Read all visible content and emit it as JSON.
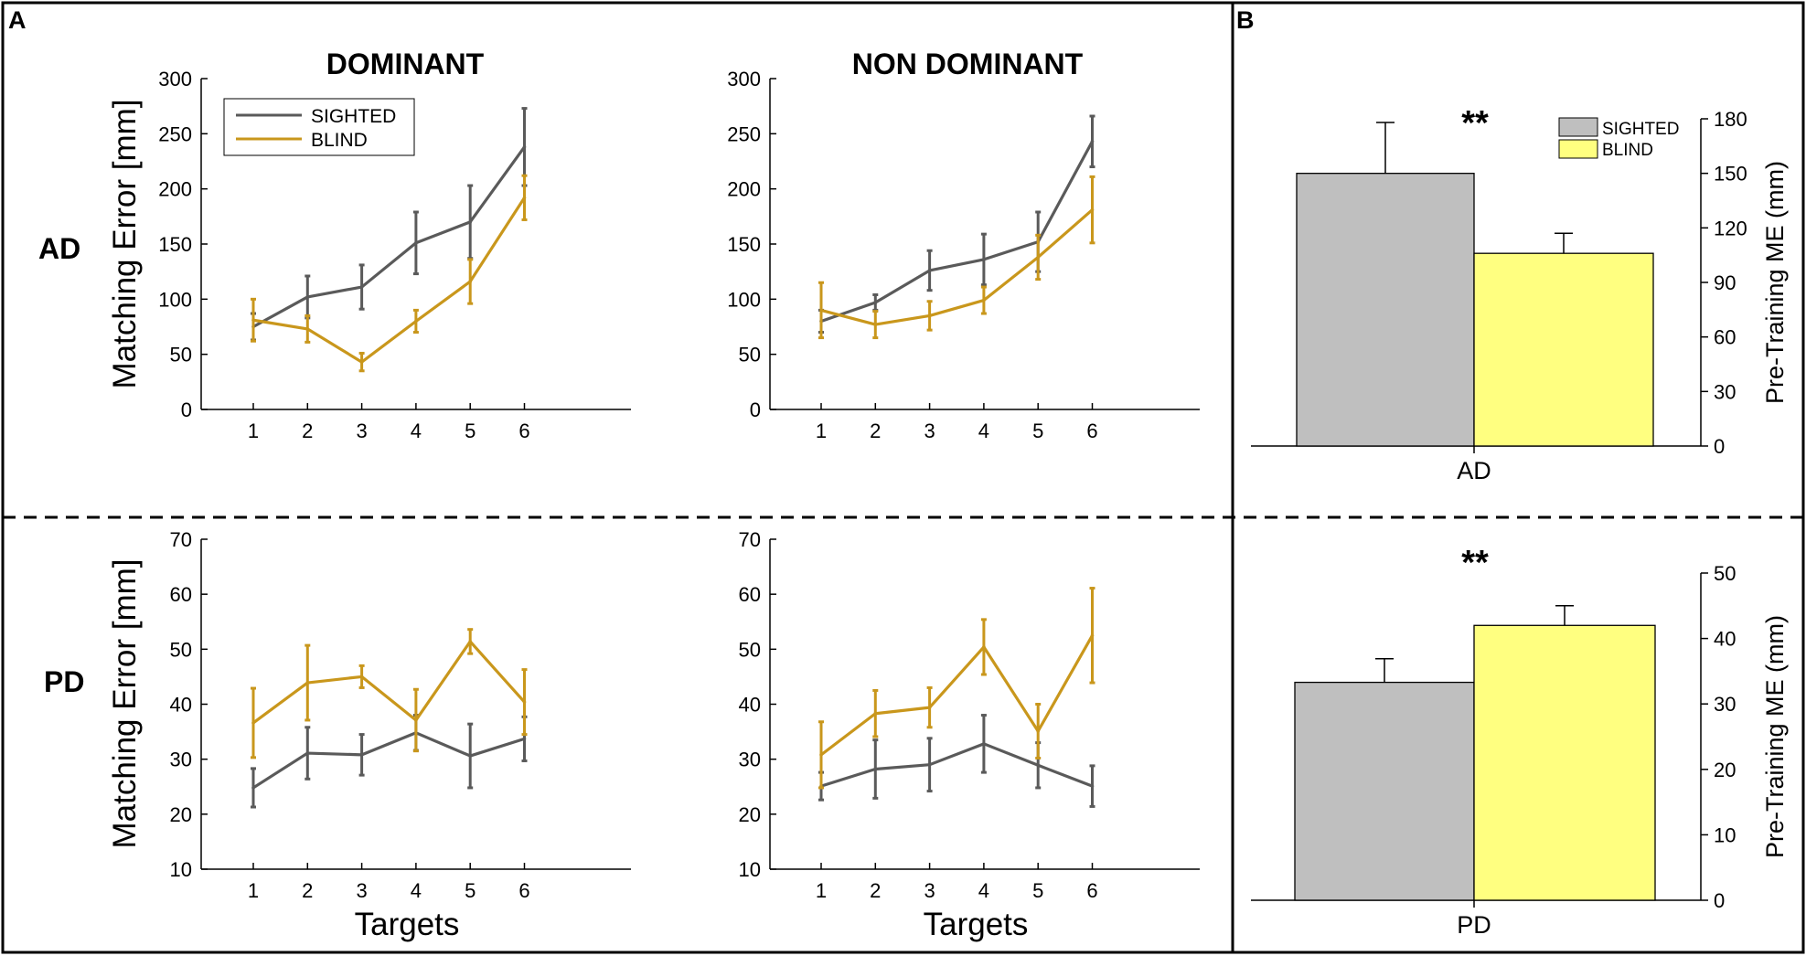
{
  "panel_labels": {
    "a": "A",
    "b": "B"
  },
  "row_labels": {
    "ad": "AD",
    "pd": "PD"
  },
  "column_titles": {
    "dominant": "DOMINANT",
    "non_dominant": "NON DOMINANT"
  },
  "colors": {
    "sighted_line": "#5a5a5a",
    "blind_line": "#c9971c",
    "sighted_bar": "#bfbfbf",
    "blind_bar": "#ffff80",
    "frame": "#000000"
  },
  "legend": {
    "sighted": "SIGHTED",
    "blind": "BLIND"
  },
  "significance": {
    "ad": "**",
    "pd": "**"
  },
  "chart_data": [
    {
      "id": "ad-dominant",
      "type": "line",
      "title": "DOMINANT",
      "row": "AD",
      "xlabel": "",
      "ylabel": "Matching Error [mm]",
      "categories": [
        "1",
        "2",
        "3",
        "4",
        "5",
        "6"
      ],
      "ylim": [
        0,
        300
      ],
      "yticks": [
        "0",
        "50",
        "100",
        "150",
        "200",
        "250",
        "300"
      ],
      "legend": "top-left",
      "series": [
        {
          "name": "SIGHTED",
          "values": [
            75,
            102,
            111,
            151,
            170,
            238
          ],
          "errors": [
            12,
            19,
            20,
            28,
            33,
            35
          ]
        },
        {
          "name": "BLIND",
          "values": [
            81,
            73,
            43,
            80,
            116,
            192
          ],
          "errors": [
            19,
            12,
            8,
            10,
            20,
            20
          ]
        }
      ]
    },
    {
      "id": "ad-nondominant",
      "type": "line",
      "title": "NON DOMINANT",
      "row": "AD",
      "xlabel": "",
      "ylabel": "",
      "categories": [
        "1",
        "2",
        "3",
        "4",
        "5",
        "6"
      ],
      "ylim": [
        0,
        300
      ],
      "yticks": [
        "0",
        "50",
        "100",
        "150",
        "200",
        "250",
        "300"
      ],
      "series": [
        {
          "name": "SIGHTED",
          "values": [
            80,
            97,
            126,
            136,
            152,
            243
          ],
          "errors": [
            10,
            7,
            18,
            23,
            27,
            23
          ]
        },
        {
          "name": "BLIND",
          "values": [
            90,
            77,
            85,
            99,
            138,
            181
          ],
          "errors": [
            25,
            12,
            13,
            12,
            20,
            30
          ]
        }
      ]
    },
    {
      "id": "pd-dominant",
      "type": "line",
      "row": "PD",
      "xlabel": "Targets",
      "ylabel": "Matching Error [mm]",
      "categories": [
        "1",
        "2",
        "3",
        "4",
        "5",
        "6"
      ],
      "ylim": [
        10,
        70
      ],
      "yticks": [
        "10",
        "20",
        "30",
        "40",
        "50",
        "60",
        "70"
      ],
      "series": [
        {
          "name": "SIGHTED",
          "values": [
            24.8,
            31.1,
            30.8,
            34.8,
            30.6,
            33.7
          ],
          "errors": [
            3.5,
            4.7,
            3.7,
            3.2,
            5.8,
            4.0
          ]
        },
        {
          "name": "BLIND",
          "values": [
            36.6,
            43.9,
            45.0,
            37.1,
            51.4,
            40.4
          ],
          "errors": [
            6.3,
            6.8,
            2.0,
            5.6,
            2.2,
            5.9
          ]
        }
      ]
    },
    {
      "id": "pd-nondominant",
      "type": "line",
      "row": "PD",
      "xlabel": "Targets",
      "ylabel": "",
      "categories": [
        "1",
        "2",
        "3",
        "4",
        "5",
        "6"
      ],
      "ylim": [
        10,
        70
      ],
      "yticks": [
        "10",
        "20",
        "30",
        "40",
        "50",
        "60",
        "70"
      ],
      "series": [
        {
          "name": "SIGHTED",
          "values": [
            25.1,
            28.2,
            29.0,
            32.8,
            28.9,
            25.1
          ],
          "errors": [
            2.5,
            5.3,
            4.8,
            5.2,
            4.1,
            3.7
          ]
        },
        {
          "name": "BLIND",
          "values": [
            30.8,
            38.3,
            39.4,
            50.4,
            35.1,
            52.5
          ],
          "errors": [
            6.0,
            4.2,
            3.6,
            5.0,
            4.9,
            8.6
          ]
        }
      ]
    },
    {
      "id": "ad-bars",
      "type": "bar",
      "row": "AD",
      "categories": [
        "SIGHTED",
        "BLIND"
      ],
      "values": [
        150,
        106
      ],
      "errors": [
        28,
        11
      ],
      "xlabel": "AD",
      "ylabel": "Pre-Training ME (mm)",
      "ylim": [
        0,
        180
      ],
      "yticks": [
        "0",
        "30",
        "60",
        "90",
        "120",
        "150",
        "180"
      ],
      "legend": "top-right"
    },
    {
      "id": "pd-bars",
      "type": "bar",
      "row": "PD",
      "categories": [
        "SIGHTED",
        "BLIND"
      ],
      "values": [
        33.3,
        42
      ],
      "errors": [
        3.6,
        3
      ],
      "xlabel": "PD",
      "ylabel": "Pre-Training ME (mm)",
      "ylim": [
        0,
        50
      ],
      "yticks": [
        "0",
        "10",
        "20",
        "30",
        "40",
        "50"
      ]
    }
  ]
}
